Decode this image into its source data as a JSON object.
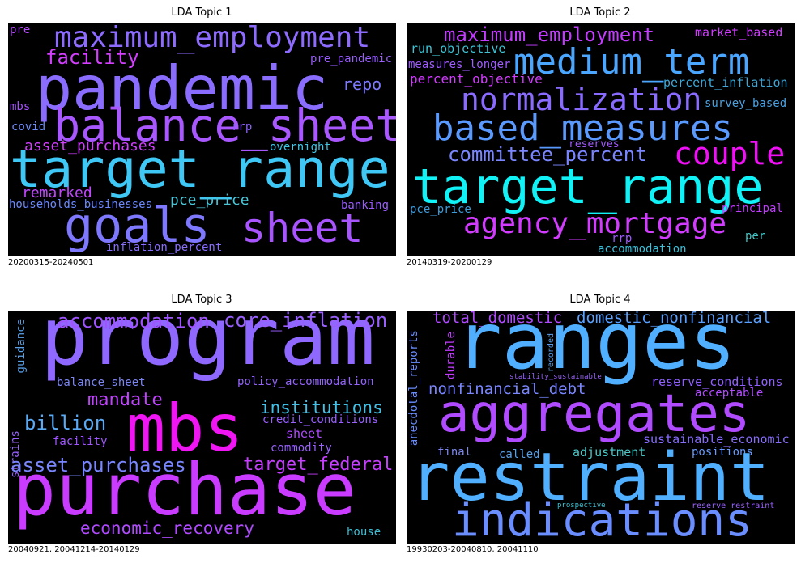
{
  "panels": [
    {
      "title": "LDA Topic 1",
      "caption": "20200315-20240501",
      "words": [
        {
          "text": "pre",
          "color": "#b84bff"
        },
        {
          "text": "maximum_employment",
          "color": "#8d6bff"
        },
        {
          "text": "facility",
          "color": "#d43fff"
        },
        {
          "text": "pre_pandemic",
          "color": "#9a5cff"
        },
        {
          "text": "pandemic",
          "color": "#8a6dff"
        },
        {
          "text": "repo",
          "color": "#7e7bff"
        },
        {
          "text": "mbs",
          "color": "#a653ff"
        },
        {
          "text": "balance_sheet",
          "color": "#a957ff"
        },
        {
          "text": "covid",
          "color": "#6b8dff"
        },
        {
          "text": "rrp",
          "color": "#8f63ff"
        },
        {
          "text": "overnight",
          "color": "#3ec8e8"
        },
        {
          "text": "asset_purchases",
          "color": "#d23fff"
        },
        {
          "text": "target_range",
          "color": "#3fc8f5"
        },
        {
          "text": "remarked",
          "color": "#c246ff"
        },
        {
          "text": "pce_price",
          "color": "#48c6d8"
        },
        {
          "text": "households_businesses",
          "color": "#6b88ff"
        },
        {
          "text": "banking",
          "color": "#9a5cff"
        },
        {
          "text": "goals",
          "color": "#7e78ff"
        },
        {
          "text": "sheet",
          "color": "#a854ff"
        },
        {
          "text": "inflation_percent",
          "color": "#8a6dff"
        }
      ]
    },
    {
      "title": "LDA Topic 2",
      "caption": "20140319-20200129",
      "words": [
        {
          "text": "maximum_employment",
          "color": "#c33cff"
        },
        {
          "text": "market_based",
          "color": "#d03cff"
        },
        {
          "text": "run_objective",
          "color": "#3fc4d6"
        },
        {
          "text": "measures_longer",
          "color": "#9f5cff"
        },
        {
          "text": "medium_term",
          "color": "#4aa6ff"
        },
        {
          "text": "percent_objective",
          "color": "#d33cff"
        },
        {
          "text": "percent_inflation",
          "color": "#3fa8d8"
        },
        {
          "text": "normalization",
          "color": "#8a6bff"
        },
        {
          "text": "survey_based",
          "color": "#4aa0e0"
        },
        {
          "text": "based_measures",
          "color": "#5a9aff"
        },
        {
          "text": "committee_percent",
          "color": "#7a86ff"
        },
        {
          "text": "reserves",
          "color": "#a158ff"
        },
        {
          "text": "couple",
          "color": "#f010f6"
        },
        {
          "text": "target_range",
          "color": "#10f2f6"
        },
        {
          "text": "pce_price",
          "color": "#3f9ad8"
        },
        {
          "text": "principal",
          "color": "#c23cff"
        },
        {
          "text": "agency_mortgage",
          "color": "#d23cff"
        },
        {
          "text": "rrp",
          "color": "#9f5cff"
        },
        {
          "text": "per",
          "color": "#3fc8c8"
        },
        {
          "text": "accommodation",
          "color": "#3fc0d8"
        }
      ]
    },
    {
      "title": "LDA Topic 3",
      "caption": "20040921, 20041214-20140129",
      "words": [
        {
          "text": "program",
          "color": "#8f68ff"
        },
        {
          "text": "accommodation",
          "color": "#a054ff"
        },
        {
          "text": "core_inflation",
          "color": "#9a60ff"
        },
        {
          "text": "guidance",
          "color": "#5aa0e6"
        },
        {
          "text": "balance_sheet",
          "color": "#7c86f0"
        },
        {
          "text": "policy_accommodation",
          "color": "#9564ff"
        },
        {
          "text": "mandate",
          "color": "#c243ff"
        },
        {
          "text": "institutions",
          "color": "#44c0e6"
        },
        {
          "text": "credit_conditions",
          "color": "#9a60ff"
        },
        {
          "text": "billion",
          "color": "#5aaaf5"
        },
        {
          "text": "mbs",
          "color": "#f015f3"
        },
        {
          "text": "sheet",
          "color": "#b04bff"
        },
        {
          "text": "strains",
          "color": "#9a60ff"
        },
        {
          "text": "facility",
          "color": "#a057ff"
        },
        {
          "text": "commodity",
          "color": "#9a62ff"
        },
        {
          "text": "asset_purchases",
          "color": "#7a86ff"
        },
        {
          "text": "target_federal",
          "color": "#c63fff"
        },
        {
          "text": "purchase",
          "color": "#c93cff"
        },
        {
          "text": "economic_recovery",
          "color": "#b04bff"
        },
        {
          "text": "house",
          "color": "#3fc0d6"
        }
      ]
    },
    {
      "title": "LDA Topic 4",
      "caption": "19930203-20040810, 20041110",
      "words": [
        {
          "text": "total_domestic",
          "color": "#b04bff"
        },
        {
          "text": "domestic_nonfinancial",
          "color": "#5aa0ff"
        },
        {
          "text": "ranges",
          "color": "#50b0ff"
        },
        {
          "text": "anecdotal_reports",
          "color": "#6a8dff"
        },
        {
          "text": "durable",
          "color": "#c33cff"
        },
        {
          "text": "recorded",
          "color": "#5a9ae6"
        },
        {
          "text": "stability_sustainable",
          "color": "#9a60ff"
        },
        {
          "text": "reserve_conditions",
          "color": "#9060ff"
        },
        {
          "text": "nonfinancial_debt",
          "color": "#7a86ff"
        },
        {
          "text": "acceptable",
          "color": "#b04bff"
        },
        {
          "text": "aggregates",
          "color": "#b04bff"
        },
        {
          "text": "sustainable_economic",
          "color": "#8a6dff"
        },
        {
          "text": "final",
          "color": "#7c86f0"
        },
        {
          "text": "called",
          "color": "#5aa0e6"
        },
        {
          "text": "adjustment",
          "color": "#4ac8c8"
        },
        {
          "text": "positions",
          "color": "#6a9aff"
        },
        {
          "text": "restraint",
          "color": "#50b0ff"
        },
        {
          "text": "prospective",
          "color": "#3fc4d6"
        },
        {
          "text": "reserve_restraint",
          "color": "#9a60ff"
        },
        {
          "text": "indications",
          "color": "#6a8dff"
        }
      ]
    }
  ]
}
